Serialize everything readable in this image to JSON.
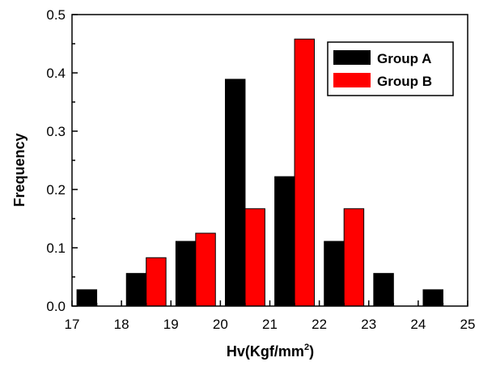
{
  "chart_data": {
    "type": "bar",
    "xlabel": "Hv(Kgf/mm",
    "xlabel_superscript": "2",
    "xlabel_suffix": ")",
    "ylabel": "Frequency",
    "xlim": [
      17,
      25
    ],
    "ylim": [
      0,
      0.5
    ],
    "x_ticks": [
      "17",
      "18",
      "19",
      "20",
      "21",
      "22",
      "23",
      "24",
      "25"
    ],
    "y_ticks": [
      "0.0",
      "0.1",
      "0.2",
      "0.3",
      "0.4",
      "0.5"
    ],
    "bar_width": 0.4,
    "series": [
      {
        "name": "Group A",
        "color": "#000000",
        "x_start": [
          17.1,
          18.1,
          19.1,
          20.1,
          21.1,
          22.1,
          23.1,
          24.1
        ],
        "values": [
          0.028,
          0.056,
          0.111,
          0.389,
          0.222,
          0.111,
          0.056,
          0.028
        ]
      },
      {
        "name": "Group B",
        "color": "#ff0000",
        "x_start": [
          18.5,
          19.5,
          20.5,
          21.5,
          22.5
        ],
        "values": [
          0.083,
          0.125,
          0.167,
          0.458,
          0.167
        ]
      }
    ],
    "legend_placement": "top-right",
    "grid": false
  }
}
